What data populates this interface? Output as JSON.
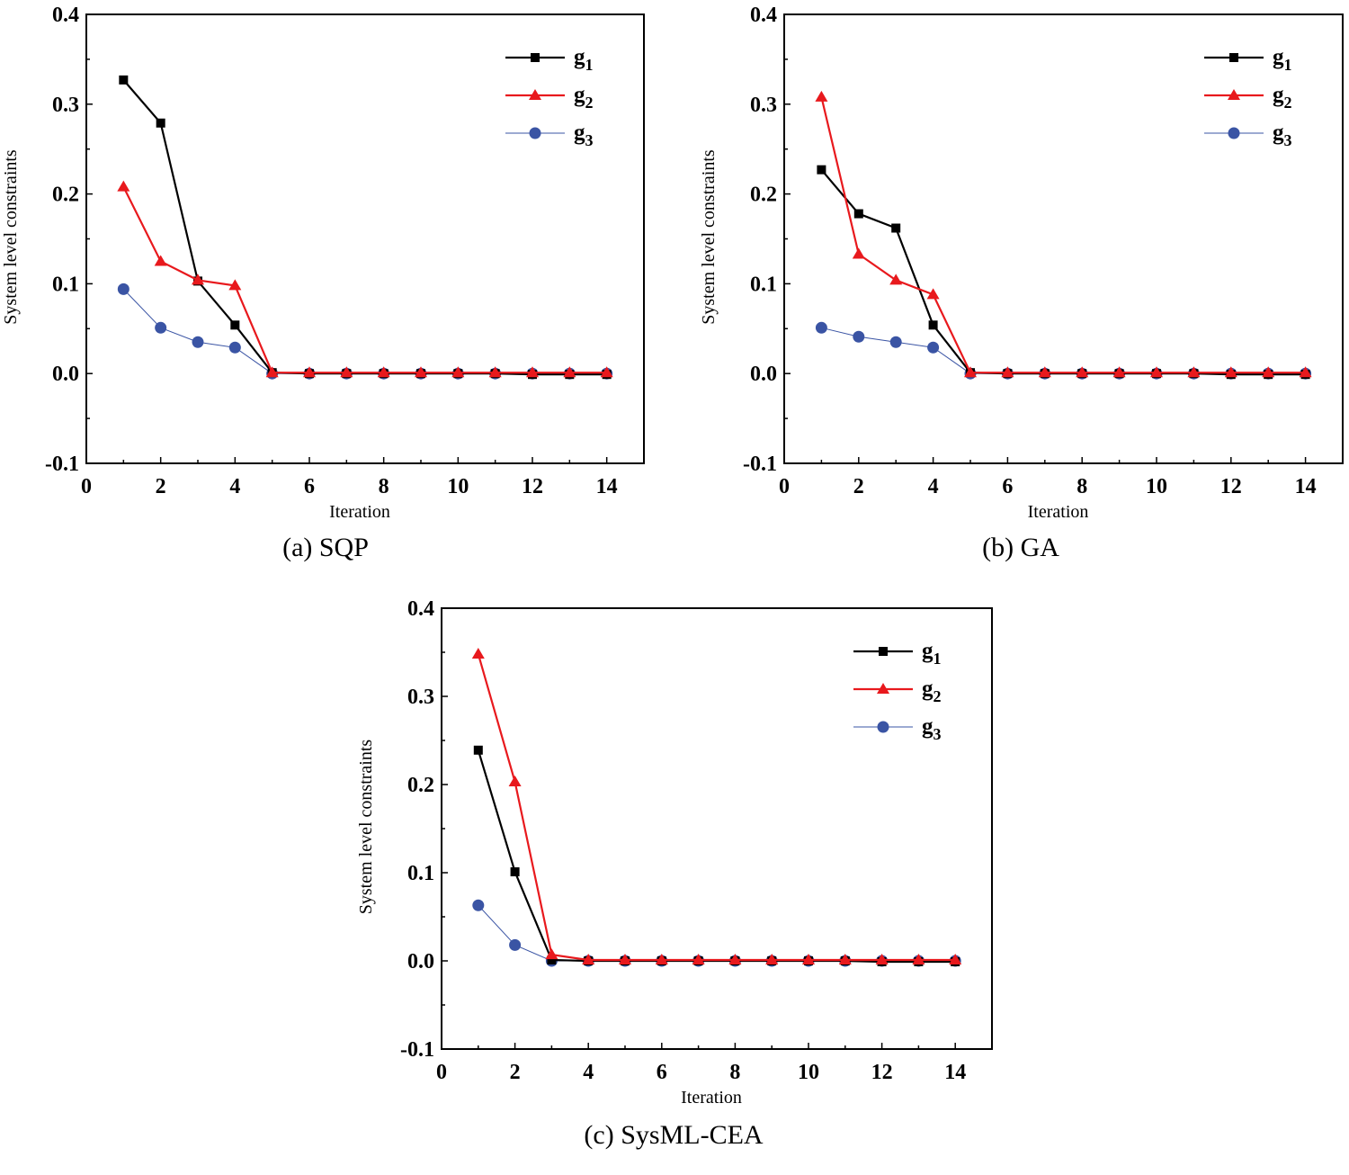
{
  "chart_data": [
    {
      "type": "line",
      "caption": "(a) SQP",
      "xlabel": "Iteration",
      "ylabel": "System level constraints",
      "xlim": [
        0,
        15
      ],
      "ylim": [
        -0.1,
        0.4
      ],
      "xticks": [
        "0",
        "2",
        "4",
        "6",
        "8",
        "10",
        "12",
        "14"
      ],
      "yticks": [
        "-0.1",
        "0.0",
        "0.1",
        "0.2",
        "0.3",
        "0.4"
      ],
      "legend_position": "top-right",
      "x": [
        1,
        2,
        3,
        4,
        5,
        6,
        7,
        8,
        9,
        10,
        11,
        12,
        13,
        14
      ],
      "series": [
        {
          "name": "g",
          "sub": "1",
          "color": "#000000",
          "marker": "square",
          "values": [
            0.327,
            0.279,
            0.103,
            0.054,
            0.001,
            0.0,
            0.0,
            0.0,
            0.0,
            0.0,
            0.0,
            -0.001,
            -0.001,
            -0.001
          ]
        },
        {
          "name": "g",
          "sub": "2",
          "color": "#e8191d",
          "marker": "triangle",
          "values": [
            0.208,
            0.125,
            0.104,
            0.098,
            0.001,
            0.001,
            0.001,
            0.001,
            0.001,
            0.001,
            0.001,
            0.001,
            0.001,
            0.001
          ]
        },
        {
          "name": "g",
          "sub": "3",
          "color": "#3a54a4",
          "marker": "circle",
          "values": [
            0.094,
            0.051,
            0.035,
            0.029,
            0.0,
            0.0,
            0.0,
            0.0,
            0.0,
            0.0,
            0.0,
            0.0,
            0.0,
            0.0
          ]
        }
      ]
    },
    {
      "type": "line",
      "caption": "(b) GA",
      "xlabel": "Iteration",
      "ylabel": "System level constraints",
      "xlim": [
        0,
        15
      ],
      "ylim": [
        -0.1,
        0.4
      ],
      "xticks": [
        "0",
        "2",
        "4",
        "6",
        "8",
        "10",
        "12",
        "14"
      ],
      "yticks": [
        "-0.1",
        "0.0",
        "0.1",
        "0.2",
        "0.3",
        "0.4"
      ],
      "legend_position": "top-right",
      "x": [
        1,
        2,
        3,
        4,
        5,
        6,
        7,
        8,
        9,
        10,
        11,
        12,
        13,
        14
      ],
      "series": [
        {
          "name": "g",
          "sub": "1",
          "color": "#000000",
          "marker": "square",
          "values": [
            0.227,
            0.178,
            0.162,
            0.054,
            0.001,
            0.0,
            0.0,
            0.0,
            0.0,
            0.0,
            0.0,
            -0.001,
            -0.001,
            -0.001
          ]
        },
        {
          "name": "g",
          "sub": "2",
          "color": "#e8191d",
          "marker": "triangle",
          "values": [
            0.308,
            0.133,
            0.104,
            0.088,
            0.001,
            0.001,
            0.001,
            0.001,
            0.001,
            0.001,
            0.001,
            0.001,
            0.001,
            0.001
          ]
        },
        {
          "name": "g",
          "sub": "3",
          "color": "#3a54a4",
          "marker": "circle",
          "values": [
            0.051,
            0.041,
            0.035,
            0.029,
            0.0,
            0.0,
            0.0,
            0.0,
            0.0,
            0.0,
            0.0,
            0.0,
            0.0,
            0.0
          ]
        }
      ]
    },
    {
      "type": "line",
      "caption": "(c) SysML-CEA",
      "xlabel": "Iteration",
      "ylabel": "System level constraints",
      "xlim": [
        0,
        15
      ],
      "ylim": [
        -0.1,
        0.4
      ],
      "xticks": [
        "0",
        "2",
        "4",
        "6",
        "8",
        "10",
        "12",
        "14"
      ],
      "yticks": [
        "-0.1",
        "0.0",
        "0.1",
        "0.2",
        "0.3",
        "0.4"
      ],
      "legend_position": "top-right",
      "x": [
        1,
        2,
        3,
        4,
        5,
        6,
        7,
        8,
        9,
        10,
        11,
        12,
        13,
        14
      ],
      "series": [
        {
          "name": "g",
          "sub": "1",
          "color": "#000000",
          "marker": "square",
          "values": [
            0.239,
            0.101,
            0.001,
            0.0,
            0.0,
            0.0,
            0.0,
            0.0,
            0.0,
            0.0,
            0.0,
            -0.001,
            -0.001,
            -0.001
          ]
        },
        {
          "name": "g",
          "sub": "2",
          "color": "#e8191d",
          "marker": "triangle",
          "values": [
            0.348,
            0.203,
            0.007,
            0.001,
            0.001,
            0.001,
            0.001,
            0.001,
            0.001,
            0.001,
            0.001,
            0.001,
            0.001,
            0.001
          ]
        },
        {
          "name": "g",
          "sub": "3",
          "color": "#3a54a4",
          "marker": "circle",
          "values": [
            0.063,
            0.018,
            0.0,
            0.0,
            0.0,
            0.0,
            0.0,
            0.0,
            0.0,
            0.0,
            0.0,
            0.0,
            0.0,
            0.0
          ]
        }
      ]
    }
  ]
}
